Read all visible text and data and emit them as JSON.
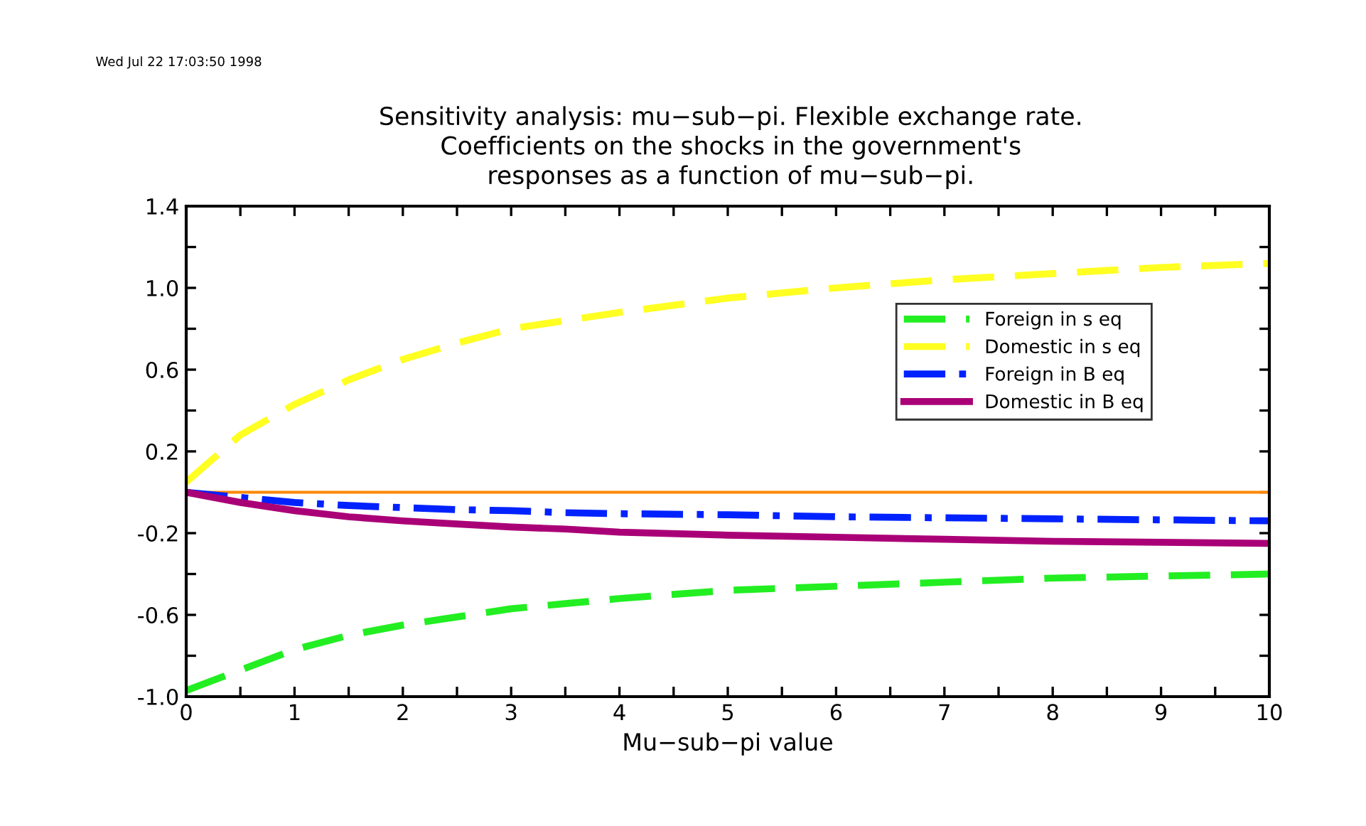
{
  "chart_data": {
    "type": "line",
    "title": "Sensitivity analysis: mu−sub−pi. Flexible exchange rate.\nCoefficients on the shocks in the government's\nresponses as a function of mu−sub−pi.",
    "xlabel": "Mu−sub−pi value",
    "annotations": [
      "Wed Jul 22 17:03:50 1998"
    ],
    "x": [
      0,
      0.5,
      1,
      1.5,
      2,
      2.5,
      3,
      3.5,
      4,
      5,
      6,
      7,
      8,
      9,
      10
    ],
    "series": [
      {
        "name": "Foreign in s eq",
        "color": "#22ee22",
        "line_style": "dashed",
        "values": [
          -0.97,
          -0.87,
          -0.77,
          -0.7,
          -0.65,
          -0.61,
          -0.57,
          -0.545,
          -0.52,
          -0.48,
          -0.46,
          -0.44,
          -0.42,
          -0.41,
          -0.4
        ]
      },
      {
        "name": "Domestic in s eq",
        "color": "#ffff22",
        "line_style": "dashed",
        "values": [
          0.05,
          0.28,
          0.43,
          0.55,
          0.65,
          0.73,
          0.8,
          0.84,
          0.88,
          0.95,
          1.0,
          1.04,
          1.07,
          1.1,
          1.12
        ]
      },
      {
        "name": "Foreign in B eq",
        "color": "#0022ff",
        "line_style": "dashdot",
        "values": [
          0,
          -0.025,
          -0.05,
          -0.065,
          -0.075,
          -0.085,
          -0.09,
          -0.1,
          -0.105,
          -0.11,
          -0.12,
          -0.125,
          -0.13,
          -0.135,
          -0.14
        ]
      },
      {
        "name": "Domestic in B eq",
        "color": "#aa0077",
        "line_style": "solid",
        "values": [
          0,
          -0.05,
          -0.09,
          -0.12,
          -0.14,
          -0.155,
          -0.17,
          -0.18,
          -0.195,
          -0.21,
          -0.22,
          -0.23,
          -0.24,
          -0.245,
          -0.25
        ]
      }
    ],
    "ref_lines": [
      {
        "axis": "y",
        "value": 0,
        "color": "#ff8800"
      }
    ],
    "xlim": [
      0,
      10
    ],
    "ylim": [
      -1.0,
      1.4
    ],
    "xticks": [
      0,
      {
        "value": 0.5,
        "label": null
      },
      1,
      {
        "value": 1.5,
        "label": null
      },
      2,
      {
        "value": 2.5,
        "label": null
      },
      3,
      {
        "value": 3.5,
        "label": null
      },
      4,
      {
        "value": 4.5,
        "label": null
      },
      5,
      {
        "value": 5.5,
        "label": null
      },
      6,
      {
        "value": 6.5,
        "label": null
      },
      7,
      {
        "value": 7.5,
        "label": null
      },
      8,
      {
        "value": 8.5,
        "label": null
      },
      9,
      {
        "value": 9.5,
        "label": null
      },
      10
    ],
    "yticks": [
      {
        "value": -1.0,
        "label": "-1.0"
      },
      {
        "value": -0.8,
        "label": null
      },
      {
        "value": -0.6,
        "label": "-0.6"
      },
      {
        "value": -0.4,
        "label": null
      },
      {
        "value": -0.2,
        "label": "-0.2"
      },
      {
        "value": 0,
        "label": null
      },
      {
        "value": 0.2,
        "label": "0.2"
      },
      {
        "value": 0.4,
        "label": null
      },
      {
        "value": 0.6,
        "label": "0.6"
      },
      {
        "value": 0.8,
        "label": null
      },
      {
        "value": 1.0,
        "label": "1.0"
      },
      {
        "value": 1.2,
        "label": null
      },
      {
        "value": 1.4,
        "label": "1.4"
      }
    ],
    "grid": false,
    "legend": "top right"
  }
}
